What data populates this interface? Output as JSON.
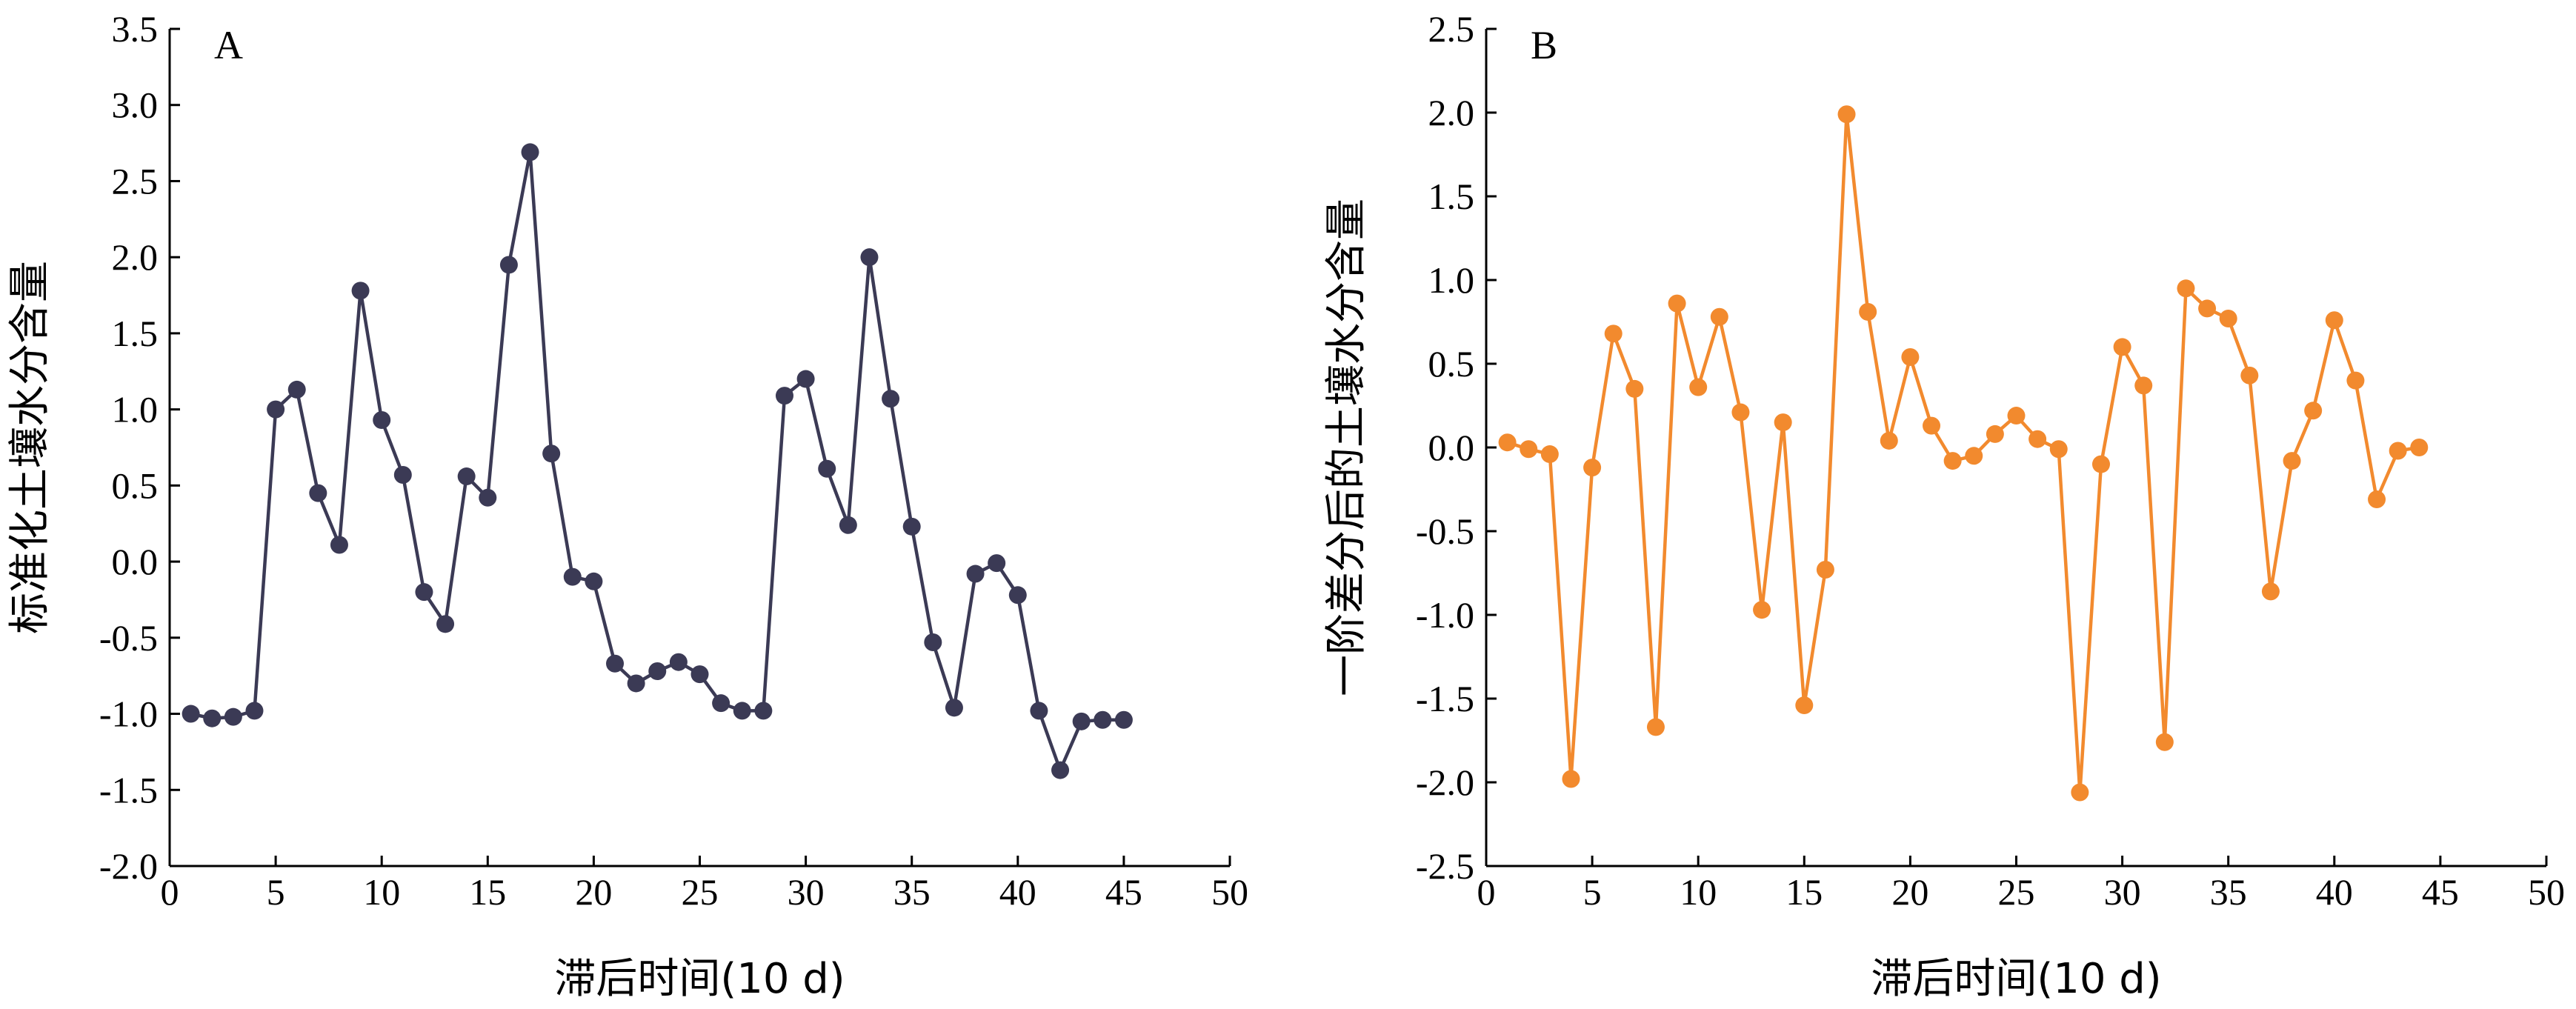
{
  "chart_data": [
    {
      "type": "line",
      "panel_label": "A",
      "xlabel": "滞后时间(10 d)",
      "ylabel": "标准化土壤水分含量",
      "xlim": [
        0,
        50
      ],
      "ylim": [
        -2.0,
        3.5
      ],
      "xticks": [
        "0",
        "5",
        "10",
        "15",
        "20",
        "25",
        "30",
        "35",
        "40",
        "45",
        "50"
      ],
      "yticks": [
        "-2.0",
        "-1.5",
        "-1.0",
        "-0.5",
        "0.0",
        "0.5",
        "1.0",
        "1.5",
        "2.0",
        "2.5",
        "3.0",
        "3.5"
      ],
      "grid": false,
      "color": "#3b3a55",
      "x": [
        1,
        2,
        3,
        4,
        5,
        6,
        7,
        8,
        9,
        10,
        11,
        12,
        13,
        14,
        15,
        16,
        17,
        18,
        19,
        20,
        21,
        22,
        23,
        24,
        25,
        26,
        27,
        28,
        29,
        30,
        31,
        32,
        33,
        34,
        35,
        36,
        37,
        38,
        39,
        40,
        41,
        42,
        43,
        44,
        45
      ],
      "y": [
        -1.0,
        -1.03,
        -1.02,
        -0.98,
        1.0,
        1.13,
        0.45,
        0.11,
        1.78,
        0.93,
        0.57,
        -0.2,
        -0.41,
        0.56,
        0.42,
        1.95,
        2.69,
        0.71,
        -0.1,
        -0.13,
        -0.67,
        -0.8,
        -0.72,
        -0.66,
        -0.74,
        -0.93,
        -0.98,
        -0.98,
        1.09,
        1.2,
        0.61,
        0.24,
        2.0,
        1.07,
        0.23,
        -0.53,
        -0.96,
        -0.08,
        -0.01,
        -0.22,
        -0.98,
        -1.37,
        -1.05,
        -1.04,
        -1.04
      ]
    },
    {
      "type": "line",
      "panel_label": "B",
      "xlabel": "滞后时间(10 d)",
      "ylabel": "一阶差分后的土壤水分含量",
      "xlim": [
        0,
        50
      ],
      "ylim": [
        -2.5,
        2.5
      ],
      "xticks": [
        "0",
        "5",
        "10",
        "15",
        "20",
        "25",
        "30",
        "35",
        "40",
        "45",
        "50"
      ],
      "yticks": [
        "-2.5",
        "-2.0",
        "-1.5",
        "-1.0",
        "-0.5",
        "0.0",
        "0.5",
        "1.0",
        "1.5",
        "2.0",
        "2.5"
      ],
      "grid": false,
      "color": "#f28a2e",
      "x": [
        1,
        2,
        3,
        4,
        5,
        6,
        7,
        8,
        9,
        10,
        11,
        12,
        13,
        14,
        15,
        16,
        17,
        18,
        19,
        20,
        21,
        22,
        23,
        24,
        25,
        26,
        27,
        28,
        29,
        30,
        31,
        32,
        33,
        34,
        35,
        36,
        37,
        38,
        39,
        40,
        41,
        42,
        43,
        44
      ],
      "y": [
        0.03,
        -0.01,
        -0.04,
        -1.98,
        -0.12,
        0.68,
        0.35,
        -1.67,
        0.86,
        0.36,
        0.78,
        0.21,
        -0.97,
        0.15,
        -1.54,
        -0.73,
        1.99,
        0.81,
        0.04,
        0.54,
        0.13,
        -0.08,
        -0.05,
        0.08,
        0.19,
        0.05,
        -0.01,
        -2.06,
        -0.1,
        0.6,
        0.37,
        -1.76,
        0.95,
        0.83,
        0.77,
        0.43,
        -0.86,
        -0.08,
        0.22,
        0.76,
        0.4,
        -0.31,
        -0.02,
        0.0
      ]
    }
  ]
}
